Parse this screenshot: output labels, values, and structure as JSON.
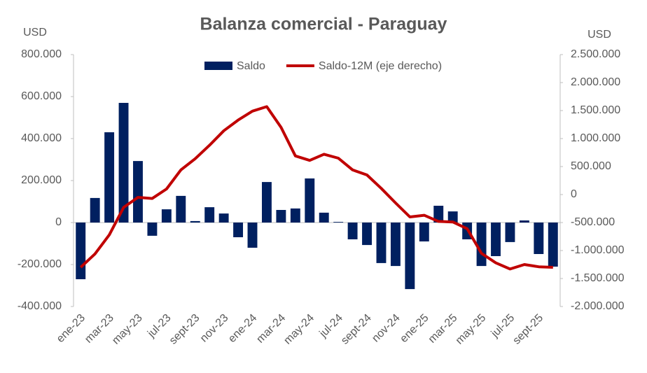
{
  "chart_data": {
    "type": "bar",
    "title": "Balanza comercial - Paraguay",
    "y_label": "USD",
    "y2_label": "USD",
    "categories": [
      "ene-23",
      null,
      "mar-23",
      null,
      "may-23",
      null,
      "jul-23",
      null,
      "sept-23",
      null,
      "nov-23",
      null,
      "ene-24",
      null,
      "mar-24",
      null,
      "may-24",
      null,
      "jul-24",
      null,
      "sept-24",
      null,
      "nov-24",
      null,
      "ene-25",
      null,
      "mar-25",
      null,
      "may-25",
      null,
      "jul-25",
      null,
      "sept-25",
      null
    ],
    "series": [
      {
        "name": "Saldo",
        "type": "bar",
        "color": "#002060",
        "values": [
          -270000,
          117000,
          430000,
          570000,
          293000,
          -63000,
          63000,
          127000,
          7000,
          73000,
          43000,
          -70000,
          -120000,
          193000,
          60000,
          67000,
          210000,
          47000,
          3000,
          -80000,
          -107000,
          -193000,
          -207000,
          -317000,
          -90000,
          80000,
          53000,
          -80000,
          -207000,
          -160000,
          -93000,
          10000,
          -150000,
          -210000
        ]
      },
      {
        "name": "Saldo-12M (eje derecho)",
        "type": "line",
        "axis": "y2",
        "color": "#c00000",
        "values": [
          -1300000,
          -1060000,
          -720000,
          -230000,
          -50000,
          -70000,
          100000,
          440000,
          640000,
          880000,
          1140000,
          1330000,
          1490000,
          1570000,
          1200000,
          690000,
          610000,
          720000,
          650000,
          440000,
          350000,
          110000,
          -150000,
          -400000,
          -370000,
          -480000,
          -490000,
          -610000,
          -1050000,
          -1220000,
          -1330000,
          -1250000,
          -1290000,
          -1300000
        ]
      }
    ],
    "ylim": [
      -400000,
      800000
    ],
    "yticks": [
      {
        "value": -400000,
        "label": "-400.000"
      },
      {
        "value": -200000,
        "label": "-200.000"
      },
      0,
      {
        "value": 200000,
        "label": "200.000"
      },
      {
        "value": 400000,
        "label": "400.000"
      },
      {
        "value": 600000,
        "label": "600.000"
      },
      {
        "value": 800000,
        "label": "800.000"
      }
    ],
    "y2lim": [
      -2000000,
      2500000
    ],
    "y2ticks": [
      {
        "value": -2000000,
        "label": "-2.000.000"
      },
      {
        "value": -1500000,
        "label": "-1.500.000"
      },
      {
        "value": -1000000,
        "label": "-1.000.000"
      },
      {
        "value": -500000,
        "label": "-500.000"
      },
      0,
      {
        "value": 500000,
        "label": "500.000"
      },
      {
        "value": 1000000,
        "label": "1.000.000"
      },
      {
        "value": 1500000,
        "label": "1.500.000"
      },
      {
        "value": 2000000,
        "label": "2.000.000"
      },
      {
        "value": 2500000,
        "label": "2.500.000"
      }
    ],
    "legend": "top"
  }
}
